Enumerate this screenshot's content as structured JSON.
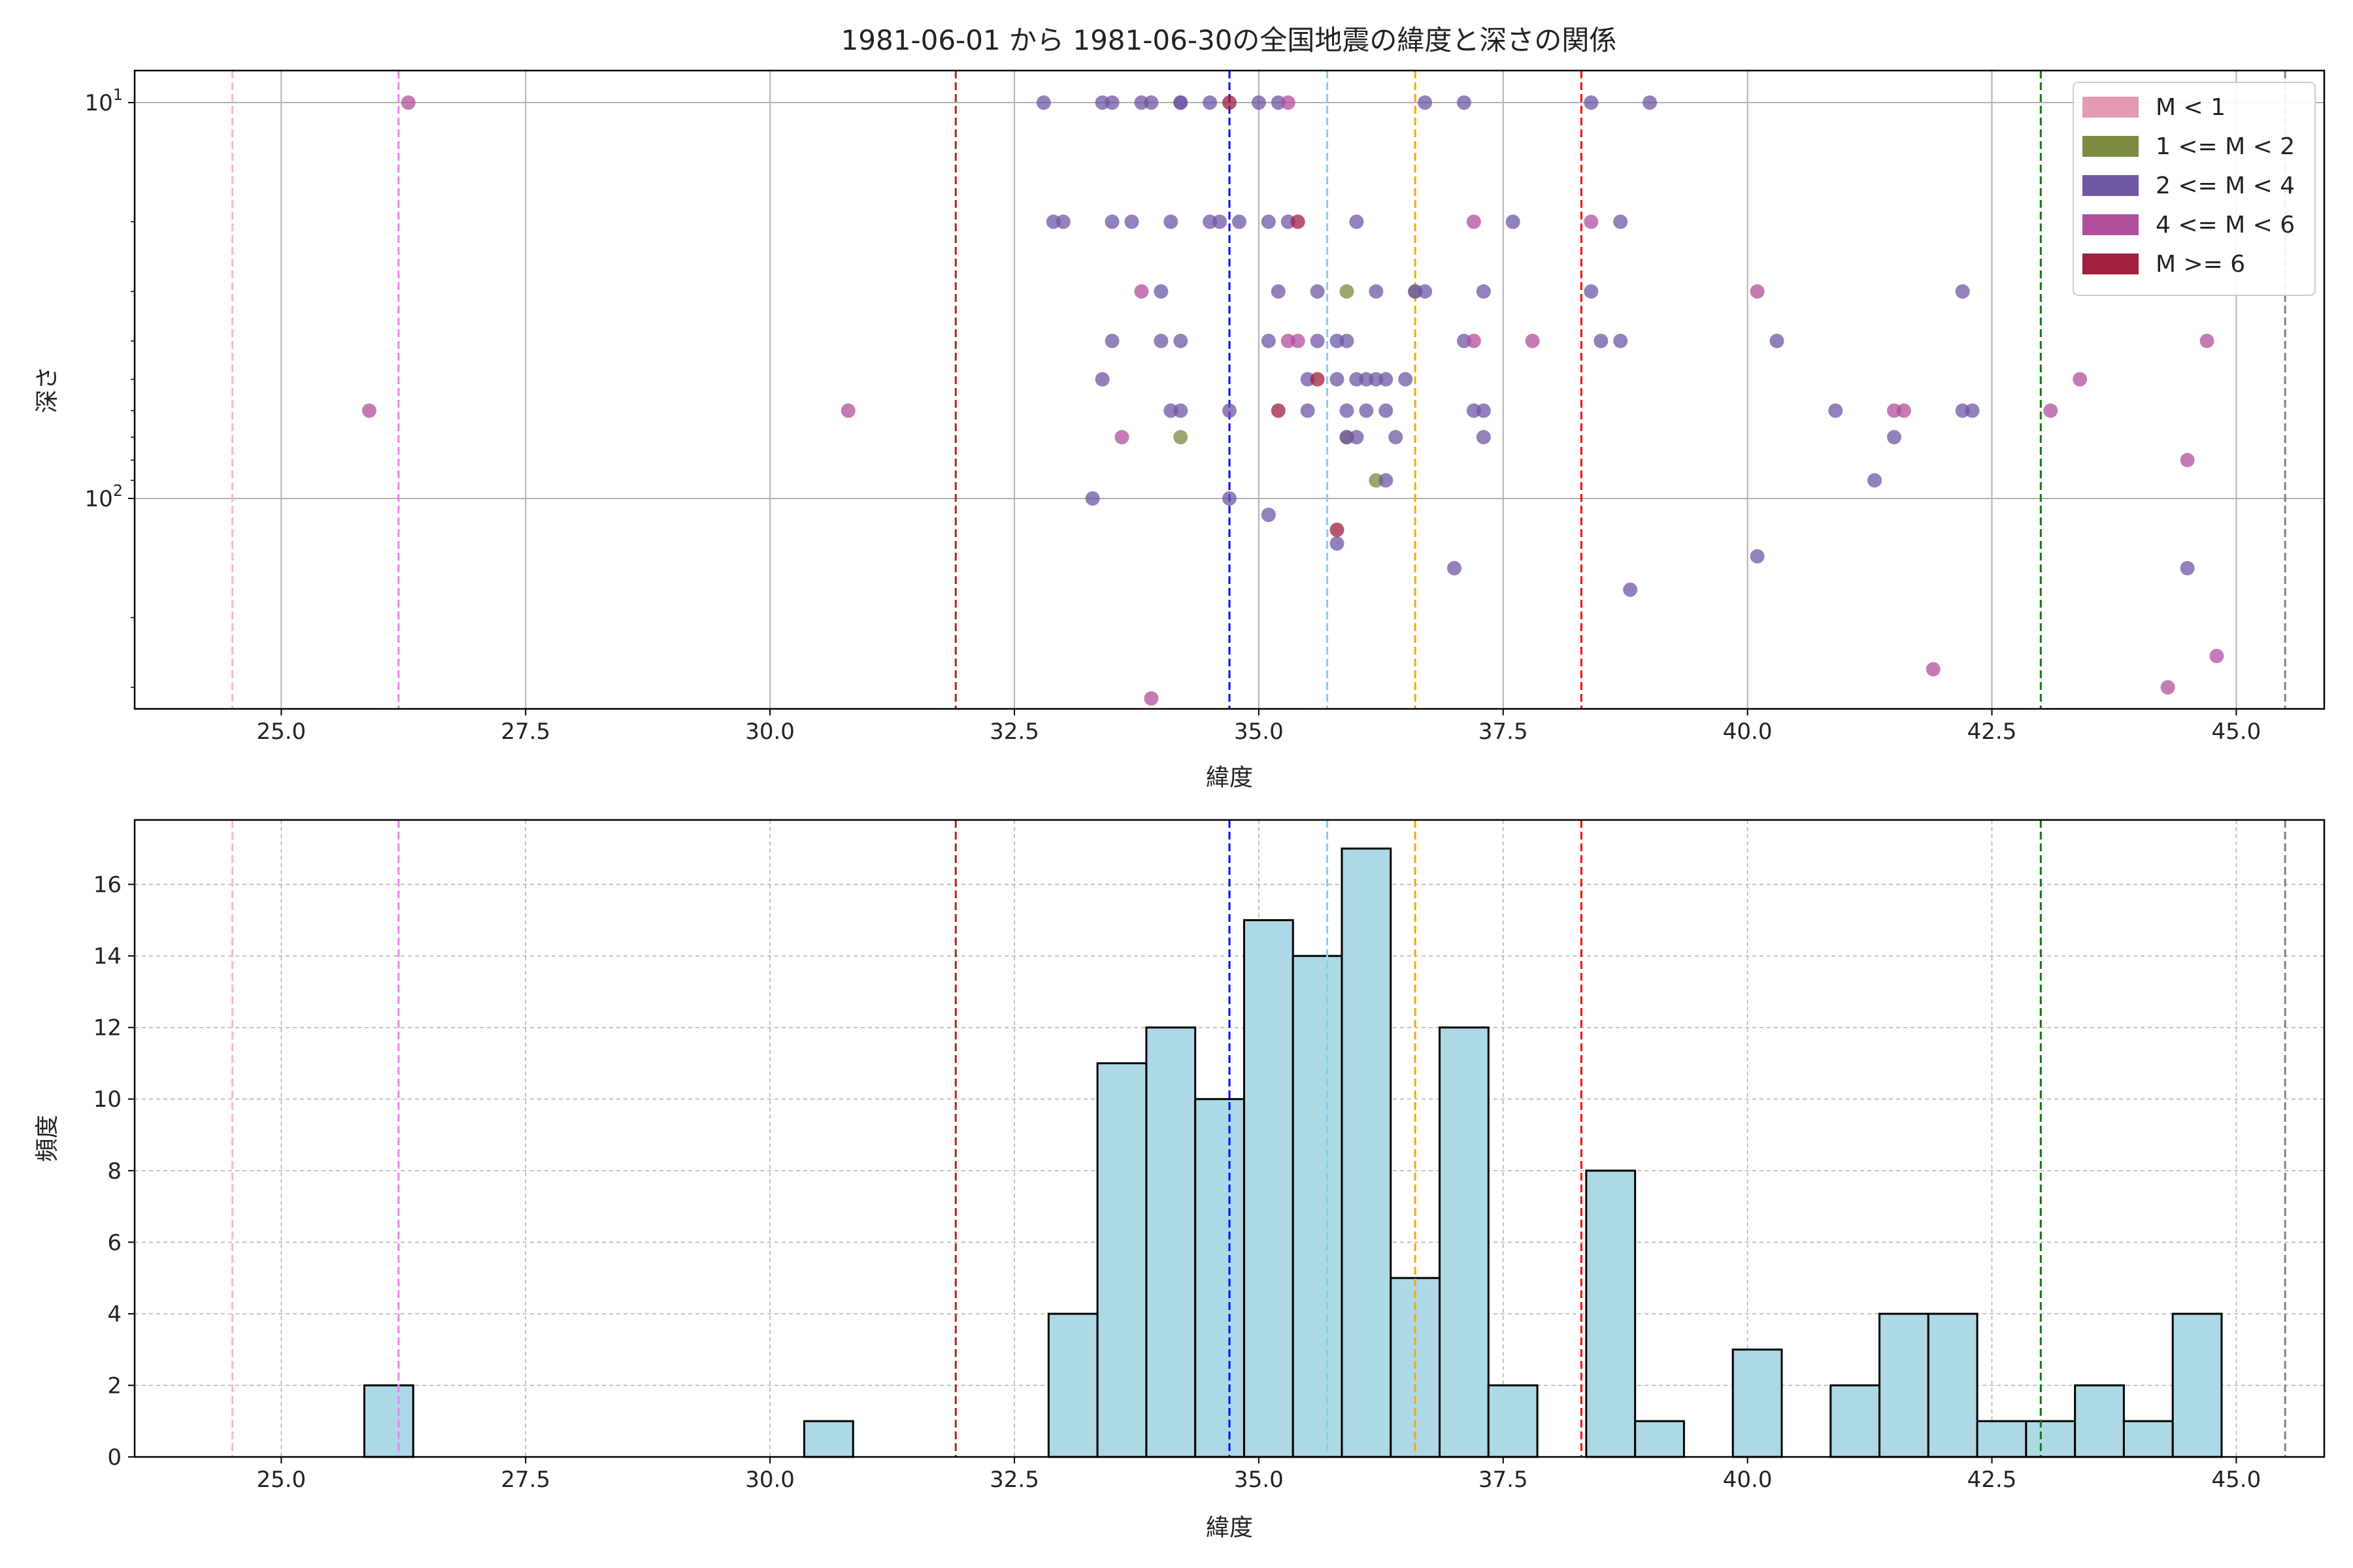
{
  "figure_title": "1981-06-01 から 1981-06-30の全国地震の緯度と深さの関係",
  "colors": {
    "m_lt1": "#e59ab4",
    "m_1_2": "#7a8a3e",
    "m_2_4": "#6e57a3",
    "m_4_6": "#b04f9c",
    "m_ge6": "#a01e3e",
    "hist_fill": "#add8e6",
    "grid": "#b0b0b0"
  },
  "chart_data": [
    {
      "type": "scatter",
      "title": "1981-06-01 から 1981-06-30の全国地震の緯度と深さの関係",
      "xlabel": "緯度",
      "ylabel": "深さ",
      "xlim": [
        23.5,
        45.9
      ],
      "ylim_log": [
        340,
        8.3
      ],
      "y_inverted": true,
      "y_scale": "log",
      "xticks": [
        "25.0",
        "27.5",
        "30.0",
        "32.5",
        "35.0",
        "37.5",
        "40.0",
        "42.5",
        "45.0"
      ],
      "yticks": [
        {
          "value": 10,
          "base": "10",
          "exp": "1"
        },
        {
          "value": 100,
          "base": "10",
          "exp": "2"
        }
      ],
      "grid": true,
      "legend_position": "top-right",
      "legend": [
        {
          "label": "M < 1",
          "color_key": "m_lt1"
        },
        {
          "label": "1 <= M < 2",
          "color_key": "m_1_2"
        },
        {
          "label": "2 <= M < 4",
          "color_key": "m_2_4"
        },
        {
          "label": "4 <= M < 6",
          "color_key": "m_4_6"
        },
        {
          "label": "M >= 6",
          "color_key": "m_ge6"
        }
      ],
      "vlines": [
        {
          "x": 24.5,
          "color": "#ffb6c1"
        },
        {
          "x": 26.2,
          "color": "#ee82ee"
        },
        {
          "x": 31.9,
          "color": "#b22222"
        },
        {
          "x": 34.7,
          "color": "#0000ff"
        },
        {
          "x": 35.7,
          "color": "#87ceeb"
        },
        {
          "x": 36.6,
          "color": "#ffa500"
        },
        {
          "x": 38.3,
          "color": "#ff0000"
        },
        {
          "x": 43.0,
          "color": "#008000"
        },
        {
          "x": 45.5,
          "color": "#808080"
        }
      ],
      "series": [
        {
          "name": "1 <= M < 2",
          "color_key": "m_1_2",
          "points": [
            [
              35.9,
              30
            ],
            [
              36.6,
              30
            ],
            [
              35.9,
              70
            ],
            [
              34.2,
              70
            ],
            [
              36.2,
              90
            ]
          ]
        },
        {
          "name": "2 <= M < 4",
          "color_key": "m_2_4",
          "points": [
            [
              32.8,
              10
            ],
            [
              33.4,
              10
            ],
            [
              33.5,
              10
            ],
            [
              33.8,
              10
            ],
            [
              33.9,
              10
            ],
            [
              34.2,
              10
            ],
            [
              34.2,
              10
            ],
            [
              34.5,
              10
            ],
            [
              35.0,
              10
            ],
            [
              35.2,
              10
            ],
            [
              36.7,
              10
            ],
            [
              37.1,
              10
            ],
            [
              38.4,
              10
            ],
            [
              39.0,
              10
            ],
            [
              32.9,
              20
            ],
            [
              33.0,
              20
            ],
            [
              33.5,
              20
            ],
            [
              33.7,
              20
            ],
            [
              34.1,
              20
            ],
            [
              34.5,
              20
            ],
            [
              34.6,
              20
            ],
            [
              34.8,
              20
            ],
            [
              35.1,
              20
            ],
            [
              35.3,
              20
            ],
            [
              36.0,
              20
            ],
            [
              37.6,
              20
            ],
            [
              38.7,
              20
            ],
            [
              34.0,
              30
            ],
            [
              35.2,
              30
            ],
            [
              35.6,
              30
            ],
            [
              36.2,
              30
            ],
            [
              36.6,
              30
            ],
            [
              36.7,
              30
            ],
            [
              37.3,
              30
            ],
            [
              38.4,
              30
            ],
            [
              42.2,
              30
            ],
            [
              33.5,
              40
            ],
            [
              34.0,
              40
            ],
            [
              34.2,
              40
            ],
            [
              35.1,
              40
            ],
            [
              35.6,
              40
            ],
            [
              35.8,
              40
            ],
            [
              35.9,
              40
            ],
            [
              37.1,
              40
            ],
            [
              38.5,
              40
            ],
            [
              38.7,
              40
            ],
            [
              40.3,
              40
            ],
            [
              33.4,
              50
            ],
            [
              35.5,
              50
            ],
            [
              35.8,
              50
            ],
            [
              36.0,
              50
            ],
            [
              36.1,
              50
            ],
            [
              36.2,
              50
            ],
            [
              36.3,
              50
            ],
            [
              36.5,
              50
            ],
            [
              34.1,
              60
            ],
            [
              34.2,
              60
            ],
            [
              34.7,
              60
            ],
            [
              35.5,
              60
            ],
            [
              35.9,
              60
            ],
            [
              36.1,
              60
            ],
            [
              36.3,
              60
            ],
            [
              37.2,
              60
            ],
            [
              37.3,
              60
            ],
            [
              40.9,
              60
            ],
            [
              42.2,
              60
            ],
            [
              42.3,
              60
            ],
            [
              35.9,
              70
            ],
            [
              36.0,
              70
            ],
            [
              36.4,
              70
            ],
            [
              37.3,
              70
            ],
            [
              41.5,
              70
            ],
            [
              36.3,
              90
            ],
            [
              41.3,
              90
            ],
            [
              33.3,
              100
            ],
            [
              34.7,
              100
            ],
            [
              35.1,
              110
            ],
            [
              35.8,
              130
            ],
            [
              37.0,
              150
            ],
            [
              40.1,
              140
            ],
            [
              44.5,
              150
            ],
            [
              38.8,
              170
            ]
          ]
        },
        {
          "name": "4 <= M < 6",
          "color_key": "m_4_6",
          "points": [
            [
              26.3,
              10
            ],
            [
              35.3,
              10
            ],
            [
              37.2,
              20
            ],
            [
              38.4,
              20
            ],
            [
              33.8,
              30
            ],
            [
              40.1,
              30
            ],
            [
              35.3,
              40
            ],
            [
              35.4,
              40
            ],
            [
              37.2,
              40
            ],
            [
              37.8,
              40
            ],
            [
              44.7,
              40
            ],
            [
              43.4,
              50
            ],
            [
              25.9,
              60
            ],
            [
              30.8,
              60
            ],
            [
              41.5,
              60
            ],
            [
              41.6,
              60
            ],
            [
              43.1,
              60
            ],
            [
              33.6,
              70
            ],
            [
              44.5,
              80
            ],
            [
              41.9,
              270
            ],
            [
              44.3,
              300
            ],
            [
              44.8,
              250
            ],
            [
              33.9,
              320
            ]
          ]
        },
        {
          "name": "M >= 6",
          "color_key": "m_ge6",
          "points": [
            [
              34.7,
              10
            ],
            [
              35.4,
              20
            ],
            [
              35.6,
              50
            ],
            [
              35.2,
              60
            ],
            [
              35.8,
              120
            ]
          ]
        }
      ]
    },
    {
      "type": "bar",
      "xlabel": "緯度",
      "ylabel": "頻度",
      "xlim": [
        23.5,
        45.9
      ],
      "ylim": [
        0,
        17.8
      ],
      "xticks": [
        "25.0",
        "27.5",
        "30.0",
        "32.5",
        "35.0",
        "37.5",
        "40.0",
        "42.5",
        "45.0"
      ],
      "yticks": [
        "0",
        "2",
        "4",
        "6",
        "8",
        "10",
        "12",
        "14",
        "16"
      ],
      "grid": true,
      "bin_width": 0.5,
      "bins": [
        {
          "start": 25.85,
          "count": 2
        },
        {
          "start": 30.35,
          "count": 1
        },
        {
          "start": 32.85,
          "count": 4
        },
        {
          "start": 33.35,
          "count": 11
        },
        {
          "start": 33.85,
          "count": 12
        },
        {
          "start": 34.35,
          "count": 10
        },
        {
          "start": 34.85,
          "count": 15
        },
        {
          "start": 35.35,
          "count": 14
        },
        {
          "start": 35.85,
          "count": 17
        },
        {
          "start": 36.35,
          "count": 5
        },
        {
          "start": 36.85,
          "count": 12
        },
        {
          "start": 37.35,
          "count": 2
        },
        {
          "start": 38.35,
          "count": 8
        },
        {
          "start": 38.85,
          "count": 1
        },
        {
          "start": 39.85,
          "count": 3
        },
        {
          "start": 40.85,
          "count": 2
        },
        {
          "start": 41.35,
          "count": 4
        },
        {
          "start": 41.85,
          "count": 4
        },
        {
          "start": 42.35,
          "count": 1
        },
        {
          "start": 42.85,
          "count": 1
        },
        {
          "start": 43.35,
          "count": 2
        },
        {
          "start": 43.85,
          "count": 1
        },
        {
          "start": 44.35,
          "count": 4
        }
      ],
      "vlines": [
        {
          "x": 24.5,
          "color": "#ffb6c1"
        },
        {
          "x": 26.2,
          "color": "#ee82ee"
        },
        {
          "x": 31.9,
          "color": "#b22222"
        },
        {
          "x": 34.7,
          "color": "#0000ff"
        },
        {
          "x": 35.7,
          "color": "#87ceeb"
        },
        {
          "x": 36.6,
          "color": "#ffa500"
        },
        {
          "x": 38.3,
          "color": "#ff0000"
        },
        {
          "x": 43.0,
          "color": "#008000"
        },
        {
          "x": 45.5,
          "color": "#808080"
        }
      ]
    }
  ]
}
